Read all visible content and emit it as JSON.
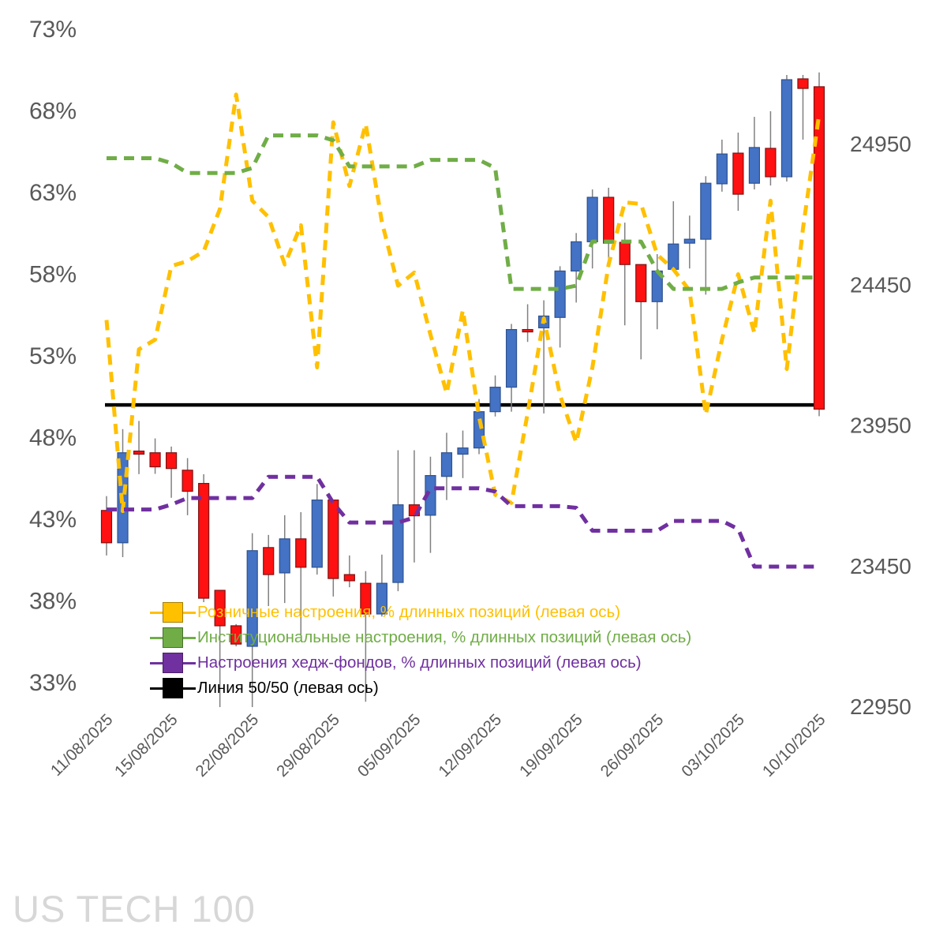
{
  "title": "US TECH 100",
  "chart_data": {
    "type": "candlestick",
    "title": "US TECH 100",
    "grid": false,
    "legend_position": "inside-bottom-left",
    "left_axis": {
      "unit": "%",
      "ticks": [
        "73%",
        "68%",
        "63%",
        "58%",
        "53%",
        "48%",
        "43%",
        "38%",
        "33%"
      ],
      "min": 33,
      "max": 73
    },
    "right_axis": {
      "ticks": [
        "24950",
        "24450",
        "23950",
        "23450",
        "22950"
      ],
      "min": 22950,
      "max": 24950
    },
    "x_labels": [
      {
        "index": 0,
        "label": "11/08/2025"
      },
      {
        "index": 4,
        "label": "15/08/2025"
      },
      {
        "index": 9,
        "label": "22/08/2025"
      },
      {
        "index": 14,
        "label": "29/08/2025"
      },
      {
        "index": 19,
        "label": "05/09/2025"
      },
      {
        "index": 24,
        "label": "12/09/2025"
      },
      {
        "index": 29,
        "label": "19/09/2025"
      },
      {
        "index": 34,
        "label": "26/09/2025"
      },
      {
        "index": 39,
        "label": "03/10/2025"
      },
      {
        "index": 44,
        "label": "10/10/2025"
      }
    ],
    "candles_axis": "right",
    "candles_format": [
      "open",
      "high",
      "low",
      "close"
    ],
    "candles": [
      [
        23649,
        23700,
        23489,
        23534
      ],
      [
        23534,
        23938,
        23483,
        23854
      ],
      [
        23860,
        23967,
        23778,
        23849
      ],
      [
        23854,
        23905,
        23779,
        23804
      ],
      [
        23854,
        23876,
        23694,
        23798
      ],
      [
        23792,
        23835,
        23632,
        23717
      ],
      [
        23745,
        23778,
        23323,
        23337
      ],
      [
        23365,
        23365,
        22950,
        23239
      ],
      [
        23239,
        23245,
        23166,
        23174
      ],
      [
        23166,
        23568,
        22950,
        23506
      ],
      [
        23517,
        23562,
        23309,
        23421
      ],
      [
        23427,
        23632,
        23320,
        23548
      ],
      [
        23548,
        23643,
        23208,
        23447
      ],
      [
        23447,
        23743,
        23421,
        23686
      ],
      [
        23686,
        23686,
        23343,
        23407
      ],
      [
        23421,
        23489,
        23376,
        23399
      ],
      [
        23390,
        23433,
        22969,
        23281
      ],
      [
        23281,
        23492,
        23272,
        23390
      ],
      [
        23393,
        23863,
        23362,
        23669
      ],
      [
        23669,
        23863,
        23464,
        23630
      ],
      [
        23632,
        23840,
        23498,
        23773
      ],
      [
        23770,
        23925,
        23686,
        23854
      ],
      [
        23849,
        23933,
        23764,
        23871
      ],
      [
        23871,
        24045,
        23849,
        24000
      ],
      [
        24000,
        24129,
        23983,
        24087
      ],
      [
        24087,
        24312,
        24000,
        24292
      ],
      [
        24292,
        24382,
        24248,
        24287
      ],
      [
        24298,
        24396,
        23994,
        24340
      ],
      [
        24335,
        24517,
        24228,
        24500
      ],
      [
        24500,
        24635,
        24388,
        24604
      ],
      [
        24604,
        24790,
        24509,
        24762
      ],
      [
        24762,
        24796,
        24514,
        24599
      ],
      [
        24602,
        24672,
        24307,
        24523
      ],
      [
        24523,
        24523,
        24186,
        24391
      ],
      [
        24391,
        24560,
        24293,
        24500
      ],
      [
        24506,
        24748,
        24506,
        24596
      ],
      [
        24599,
        24697,
        24509,
        24613
      ],
      [
        24613,
        24837,
        24416,
        24812
      ],
      [
        24810,
        24967,
        24782,
        24916
      ],
      [
        24919,
        24992,
        24714,
        24773
      ],
      [
        24812,
        25048,
        24790,
        24939
      ],
      [
        24936,
        25068,
        24804,
        24835
      ],
      [
        24835,
        25197,
        24818,
        25180
      ],
      [
        25183,
        25197,
        24967,
        25149
      ],
      [
        25155,
        25206,
        23984,
        24009
      ]
    ],
    "candle_colors": {
      "up_fill": "#4472C4",
      "up_border": "#2F528F",
      "down_fill": "#FF1111",
      "down_border": "#7F1212",
      "wick": "#808080"
    },
    "series": [
      {
        "id": "retail-sentiment",
        "name": "Розничные настроения, % длинных позиций (левая ось)",
        "color": "#FFC000",
        "axis": "left",
        "style": "dashed",
        "values": [
          55.2,
          43.5,
          53.4,
          54,
          58.5,
          58.8,
          59.4,
          62,
          69,
          62.5,
          61.5,
          58.6,
          61,
          52.3,
          67.3,
          63.4,
          67.2,
          61.2,
          57.3,
          58.1,
          54.3,
          50.7,
          55.8,
          49.3,
          44.5,
          44,
          49.5,
          55.3,
          50.6,
          47.7,
          52.3,
          58.6,
          62.4,
          62.3,
          59.2,
          58.3,
          57,
          49.4,
          54,
          58,
          54.4,
          62.5,
          52.2,
          60.8,
          67.8
        ]
      },
      {
        "id": "institutional-sentiment",
        "name": "Институциональные настроения, % длинных позиций (левая ось)",
        "color": "#70AD47",
        "axis": "left",
        "style": "dashed",
        "values": [
          65.1,
          65.1,
          65.1,
          65.1,
          64.8,
          64.2,
          64.2,
          64.2,
          64.2,
          64.5,
          66.5,
          66.5,
          66.5,
          66.5,
          66.2,
          64.6,
          64.6,
          64.6,
          64.6,
          64.6,
          65,
          65,
          65,
          65,
          64.5,
          57.1,
          57.1,
          57.1,
          57.1,
          57.3,
          60,
          60,
          60,
          60,
          58.2,
          57.1,
          57.1,
          57.1,
          57.1,
          57.5,
          57.8,
          57.8,
          57.8,
          57.8,
          57.8
        ]
      },
      {
        "id": "hedge-fund-sentiment",
        "name": "Настроения хедж-фондов, % длинных позиций (левая ось)",
        "color": "#7030A0",
        "axis": "left",
        "style": "dashed",
        "values": [
          43.6,
          43.6,
          43.6,
          43.6,
          43.9,
          44.3,
          44.3,
          44.3,
          44.3,
          44.3,
          45.6,
          45.6,
          45.6,
          45.6,
          44,
          42.8,
          42.8,
          42.8,
          42.8,
          43.1,
          44.9,
          44.9,
          44.9,
          44.9,
          44.7,
          43.8,
          43.8,
          43.8,
          43.8,
          43.7,
          42.3,
          42.3,
          42.3,
          42.3,
          42.3,
          42.9,
          42.9,
          42.9,
          42.9,
          42.4,
          40.1,
          40.1,
          40.1,
          40.1,
          40.1
        ]
      },
      {
        "id": "line-50-50",
        "name": "Линия 50/50 (левая ось)",
        "color": "#000000",
        "axis": "left",
        "style": "solid",
        "constant": 50
      }
    ]
  }
}
